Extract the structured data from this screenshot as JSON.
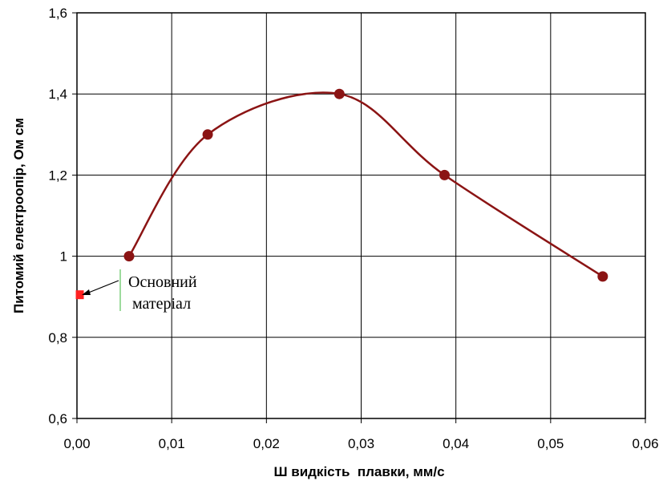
{
  "chart_data": {
    "type": "line",
    "xlabel": "Ш видкість  плавки, мм/с",
    "ylabel": "Питомий електроопір, Ом см",
    "xlim": [
      0,
      0.06
    ],
    "ylim": [
      0.6,
      1.6
    ],
    "x_ticks": [
      "0,00",
      "0,01",
      "0,02",
      "0,03",
      "0,04",
      "0,05",
      "0,06"
    ],
    "y_ticks": [
      "0,6",
      "0,8",
      "1",
      "1,2",
      "1,4",
      "1,6"
    ],
    "grid": true,
    "series": [
      {
        "x": [
          0.0055,
          0.0138,
          0.0277,
          0.0388,
          0.0555
        ],
        "y": [
          1.0,
          1.3,
          1.4,
          1.2,
          0.95
        ],
        "color": "#8b1414",
        "smooth": true,
        "marker": "circle"
      }
    ],
    "reference_point": {
      "x": 0.0003,
      "y": 0.905,
      "color": "#ff2020",
      "marker": "square"
    },
    "annotation": {
      "line1": "Основний",
      "line2": "матеріал"
    }
  }
}
